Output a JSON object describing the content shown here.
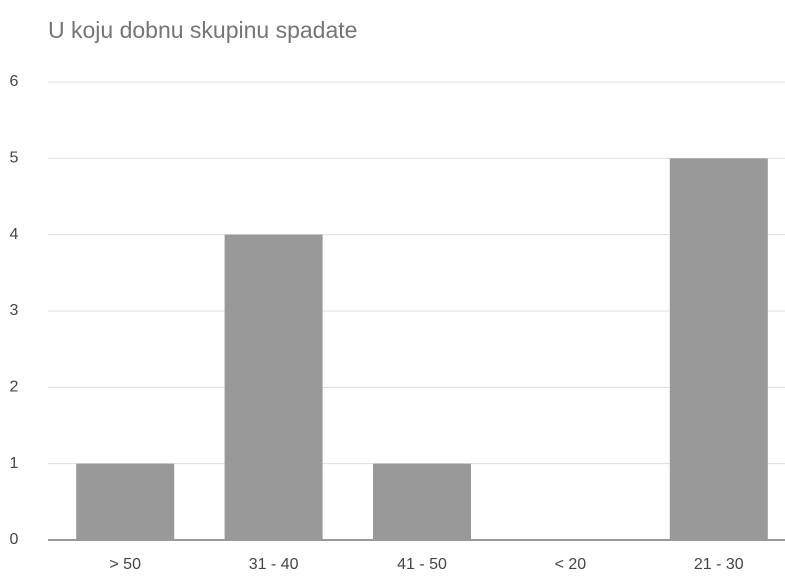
{
  "chart_data": {
    "type": "bar",
    "title": "U koju dobnu skupinu spadate",
    "categories": [
      "> 50",
      "31 - 40",
      "41 - 50",
      "< 20",
      "21 - 30"
    ],
    "values": [
      1,
      4,
      1,
      0,
      5
    ],
    "color": "#999999",
    "ylim": [
      0,
      6
    ],
    "yticks": [
      0,
      1,
      2,
      3,
      4,
      5,
      6
    ],
    "grid": true
  }
}
